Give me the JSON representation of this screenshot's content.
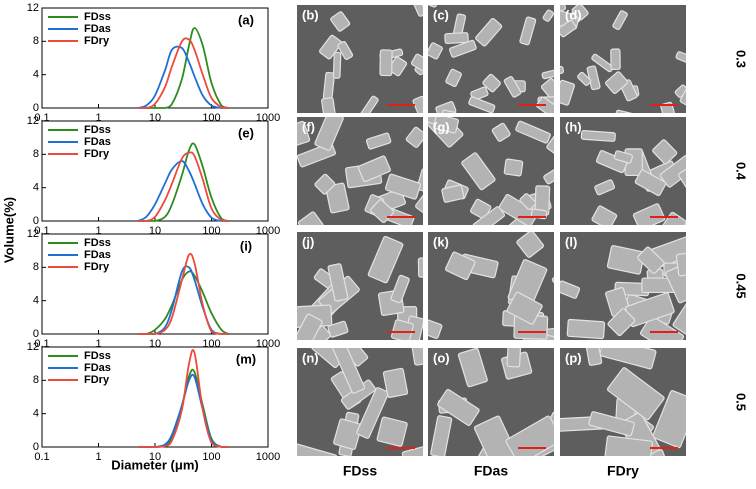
{
  "chart_data": [
    {
      "type": "line",
      "panel_label": "(a)",
      "x": [
        5,
        7,
        10,
        15,
        20,
        30,
        40,
        50,
        70,
        100,
        150,
        200
      ],
      "log_x": true,
      "xlim": [
        0.1,
        1000
      ],
      "xticks": [
        0.1,
        1,
        10,
        100,
        1000
      ],
      "ylim": [
        0,
        12
      ],
      "yticks": [
        0,
        4,
        8,
        12
      ],
      "legend": "upper left",
      "series": [
        {
          "name": "FDss",
          "color": "#2e8b1f",
          "values": [
            0,
            0,
            0,
            0,
            0.5,
            3.5,
            7.5,
            9.6,
            7.5,
            3,
            0.3,
            0
          ]
        },
        {
          "name": "FDas",
          "color": "#1f6fd6",
          "values": [
            0,
            0.3,
            1.5,
            4.5,
            7,
            7.2,
            5.5,
            3.8,
            1.5,
            0.3,
            0,
            0
          ]
        },
        {
          "name": "FDry",
          "color": "#ec4a3c",
          "values": [
            0,
            0,
            0.5,
            2.5,
            5,
            8,
            8.2,
            7,
            4,
            1.2,
            0.1,
            0
          ]
        }
      ]
    },
    {
      "type": "line",
      "panel_label": "(e)",
      "x": [
        5,
        7,
        10,
        15,
        20,
        30,
        40,
        50,
        70,
        100,
        150,
        200
      ],
      "log_x": true,
      "xlim": [
        0.1,
        1000
      ],
      "xticks": [
        0.1,
        1,
        10,
        100,
        1000
      ],
      "ylim": [
        0,
        12
      ],
      "yticks": [
        0,
        4,
        8,
        12
      ],
      "legend": "upper left",
      "series": [
        {
          "name": "FDss",
          "color": "#2e8b1f",
          "values": [
            0,
            0,
            0,
            0.5,
            2,
            5.5,
            8.5,
            9.2,
            6.5,
            2.8,
            0.3,
            0
          ]
        },
        {
          "name": "FDas",
          "color": "#1f6fd6",
          "values": [
            0,
            0.5,
            2,
            4.5,
            6.2,
            7.2,
            6,
            4.5,
            2,
            0.4,
            0,
            0
          ]
        },
        {
          "name": "FDry",
          "color": "#ec4a3c",
          "values": [
            0,
            0,
            0.5,
            2.5,
            4.5,
            7.5,
            8.2,
            7.8,
            5,
            1.5,
            0.1,
            0
          ]
        }
      ]
    },
    {
      "type": "line",
      "panel_label": "(i)",
      "x": [
        5,
        7,
        10,
        15,
        20,
        30,
        40,
        50,
        70,
        100,
        150,
        200
      ],
      "log_x": true,
      "xlim": [
        0.1,
        1000
      ],
      "xticks": [
        0.1,
        1,
        10,
        100,
        1000
      ],
      "ylim": [
        0,
        12
      ],
      "yticks": [
        0,
        4,
        8,
        12
      ],
      "legend": "upper left",
      "series": [
        {
          "name": "FDss",
          "color": "#2e8b1f",
          "values": [
            0,
            0,
            0.5,
            1.8,
            3.5,
            6.5,
            7.5,
            7,
            5,
            2.5,
            0.5,
            0
          ]
        },
        {
          "name": "FDas",
          "color": "#1f6fd6",
          "values": [
            0,
            0,
            0,
            0.8,
            3,
            7.5,
            8,
            6.5,
            3.2,
            0.5,
            0,
            0
          ]
        },
        {
          "name": "FDry",
          "color": "#ec4a3c",
          "values": [
            0,
            0,
            0,
            0.5,
            2,
            6.5,
            9.5,
            8.5,
            3.5,
            0.3,
            0,
            0
          ]
        }
      ]
    },
    {
      "type": "line",
      "panel_label": "(m)",
      "x": [
        5,
        7,
        10,
        15,
        20,
        30,
        40,
        50,
        70,
        100,
        150,
        200
      ],
      "log_x": true,
      "xlim": [
        0.1,
        1000
      ],
      "xticks": [
        0.1,
        1,
        10,
        100,
        1000
      ],
      "ylim": [
        0,
        12
      ],
      "yticks": [
        0,
        4,
        8,
        12
      ],
      "legend": "upper left",
      "series": [
        {
          "name": "FDss",
          "color": "#2e8b1f",
          "values": [
            0,
            0,
            0,
            0.2,
            1.2,
            5,
            8.5,
            9,
            5,
            1,
            0,
            0
          ]
        },
        {
          "name": "FDas",
          "color": "#1f6fd6",
          "values": [
            0,
            0,
            0,
            0.3,
            1.5,
            5,
            8,
            8.4,
            4.5,
            0.8,
            0,
            0
          ]
        },
        {
          "name": "FDry",
          "color": "#ec4a3c",
          "values": [
            0,
            0,
            0,
            0.1,
            0.8,
            4.5,
            10,
            11.3,
            4.5,
            0.5,
            0,
            0
          ]
        }
      ]
    }
  ],
  "shared_labels": {
    "y_label": "Volume(%)",
    "x_label": "Diameter (μm)"
  },
  "micrographs": {
    "panels": [
      [
        "(b)",
        "(c)",
        "(d)"
      ],
      [
        "(f)",
        "(g)",
        "(h)"
      ],
      [
        "(j)",
        "(k)",
        "(l)"
      ],
      [
        "(n)",
        "(o)",
        "(p)"
      ]
    ],
    "row_labels": [
      "0.3",
      "0.4",
      "0.45",
      "0.5"
    ],
    "column_labels": [
      "FDss",
      "FDas",
      "FDry"
    ]
  }
}
